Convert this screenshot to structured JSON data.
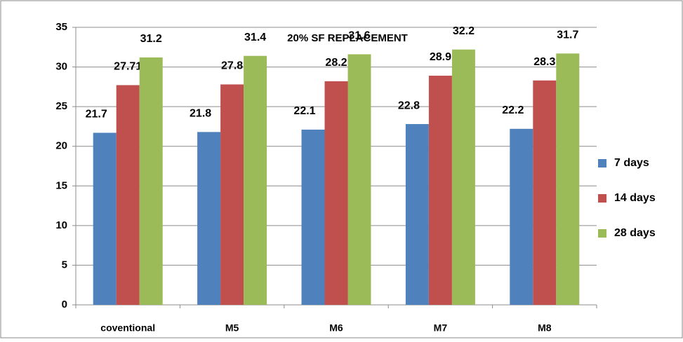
{
  "chart_data": {
    "type": "bar",
    "title": "20% SF REPLACEMENT",
    "categories": [
      "coventional",
      "M5",
      "M6",
      "M7",
      "M8"
    ],
    "series": [
      {
        "name": "7 days",
        "color": "#4f81bd",
        "values": [
          21.7,
          21.8,
          22.1,
          22.8,
          22.2
        ]
      },
      {
        "name": "14 days",
        "color": "#c0504d",
        "values": [
          27.71,
          27.8,
          28.2,
          28.9,
          28.3
        ]
      },
      {
        "name": "28 days",
        "color": "#9bbb59",
        "values": [
          31.2,
          31.4,
          31.6,
          32.2,
          31.7
        ]
      }
    ],
    "ylim": [
      0,
      35
    ],
    "yticks": [
      0,
      5,
      10,
      15,
      20,
      25,
      30,
      35
    ],
    "grid": true,
    "legend": "right"
  }
}
